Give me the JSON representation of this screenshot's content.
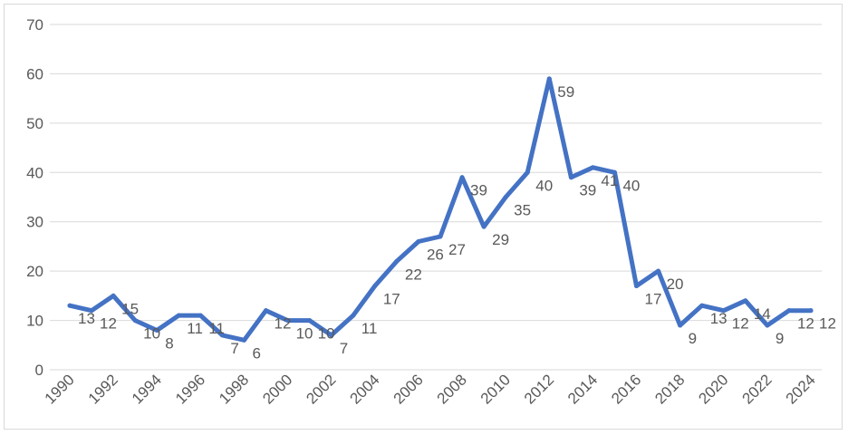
{
  "chart_data": {
    "type": "line",
    "title": "",
    "xlabel": "",
    "ylabel": "",
    "x": [
      1990,
      1991,
      1992,
      1993,
      1994,
      1995,
      1996,
      1997,
      1998,
      1999,
      2000,
      2001,
      2002,
      2003,
      2004,
      2005,
      2006,
      2007,
      2008,
      2009,
      2010,
      2011,
      2012,
      2013,
      2014,
      2015,
      2016,
      2017,
      2018,
      2019,
      2020,
      2021,
      2022,
      2023,
      2024
    ],
    "x_tick_labels": [
      "1990",
      "1992",
      "1994",
      "1996",
      "1998",
      "2000",
      "2002",
      "2004",
      "2006",
      "2008",
      "2010",
      "2012",
      "2014",
      "2016",
      "2018",
      "2020",
      "2022",
      "2024"
    ],
    "series": [
      {
        "values": [
          13,
          12,
          15,
          10,
          8,
          11,
          11,
          7,
          6,
          12,
          10,
          10,
          7,
          11,
          17,
          22,
          26,
          27,
          39,
          29,
          35,
          40,
          59,
          39,
          41,
          40,
          17,
          20,
          9,
          13,
          12,
          14,
          9,
          12,
          12
        ],
        "color": "#4472c4"
      }
    ],
    "ylim": [
      0,
      70
    ],
    "y_ticks": [
      "0",
      "10",
      "20",
      "30",
      "40",
      "50",
      "60",
      "70"
    ],
    "grid": "horizontal",
    "legend": "none"
  }
}
